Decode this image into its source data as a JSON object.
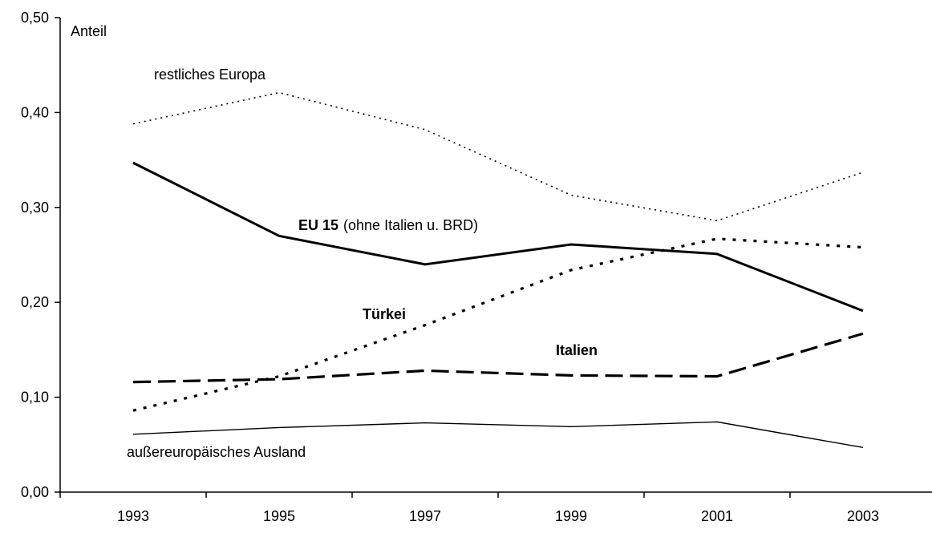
{
  "chart_data": {
    "type": "line",
    "ylabel": "Anteil",
    "ylim": [
      0,
      0.5
    ],
    "y_ticks": [
      "0,00",
      "0,10",
      "0,20",
      "0,30",
      "0,40",
      "0,50"
    ],
    "categories": [
      "1993",
      "1995",
      "1997",
      "1999",
      "2001",
      "2003"
    ],
    "series": [
      {
        "name": "restliches Europa",
        "style": "dotted-thin",
        "values": [
          0.388,
          0.421,
          0.382,
          0.313,
          0.286,
          0.337
        ]
      },
      {
        "name": "EU 15",
        "name_suffix": "(ohne Italien u. BRD)",
        "style": "solid-thick",
        "values": [
          0.347,
          0.27,
          0.24,
          0.261,
          0.251,
          0.191
        ]
      },
      {
        "name": "Türkei",
        "style": "dotted-thick",
        "values": [
          0.086,
          0.122,
          0.176,
          0.234,
          0.267,
          0.258
        ]
      },
      {
        "name": "Italien",
        "style": "dashed-thick",
        "values": [
          0.116,
          0.119,
          0.128,
          0.123,
          0.122,
          0.167
        ]
      },
      {
        "name": "außereuropäisches Ausland",
        "style": "solid-thin",
        "values": [
          0.061,
          0.068,
          0.073,
          0.069,
          0.074,
          0.047
        ]
      }
    ],
    "grid": false,
    "legend": "inline labels"
  }
}
